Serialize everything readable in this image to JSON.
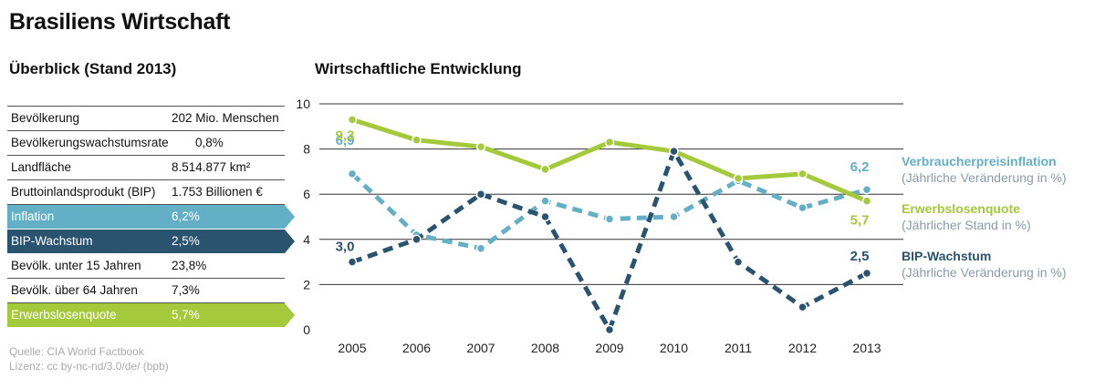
{
  "header": {
    "title": "Brasiliens Wirtschaft",
    "subtitle_left": "Überblick (Stand 2013)",
    "subtitle_right": "Wirtschaftliche Entwicklung"
  },
  "colors": {
    "inflation": "#63b0c6",
    "bip": "#2a5370",
    "erwerbslos": "#a4c93a"
  },
  "overview": [
    {
      "label": "Bevölkerung",
      "value": "202 Mio. Menschen"
    },
    {
      "label": "Bevölkerungswachstumsrate",
      "value": "0,8%"
    },
    {
      "label": "Landfläche",
      "value": "8.514.877 km²"
    },
    {
      "label": "Bruttoinlandsprodukt (BIP)",
      "value": "1.753 Billionen €"
    },
    {
      "label": "Inflation",
      "value": "6,2%"
    },
    {
      "label": "BIP-Wachstum",
      "value": "2,5%"
    },
    {
      "label": "Bevölk. unter 15 Jahren",
      "value": "23,8%"
    },
    {
      "label": "Bevölk. über 64 Jahren",
      "value": "7,3%"
    },
    {
      "label": "Erwerbslosenquote",
      "value": "5,7%"
    }
  ],
  "source": {
    "line1": "Quelle: CIA World Factbook",
    "line2": "Lizenz: cc by-nc-nd/3.0/de/ (bpb)"
  },
  "chart_data": {
    "type": "line",
    "x": [
      "2005",
      "2006",
      "2007",
      "2008",
      "2009",
      "2010",
      "2011",
      "2012",
      "2013"
    ],
    "ylim": [
      0,
      10
    ],
    "yticks": [
      "0",
      "2",
      "4",
      "6",
      "8",
      "10"
    ],
    "grid": true,
    "legend_position": "right",
    "series": [
      {
        "name": "Verbraucherpreisinflation",
        "note": "(Jährliche Veränderung in %)",
        "key": "inflation",
        "values": [
          6.9,
          4.2,
          3.6,
          5.7,
          4.9,
          5.0,
          6.6,
          5.4,
          6.2
        ],
        "dashed": true,
        "first_label": "6,9",
        "last_label": "6,2"
      },
      {
        "name": "Erwerbslosenquote",
        "note": "(Jährlicher Stand in %)",
        "key": "erwerbslos",
        "values": [
          9.3,
          8.4,
          8.1,
          7.1,
          8.3,
          7.9,
          6.7,
          6.9,
          5.7
        ],
        "dashed": false,
        "first_label": "9,3",
        "last_label": "5,7"
      },
      {
        "name": "BIP-Wachstum",
        "note": "(Jährliche Veränderung in %)",
        "key": "bip",
        "values": [
          3.0,
          4.0,
          6.0,
          5.0,
          0.0,
          7.9,
          3.0,
          1.0,
          2.5
        ],
        "dashed": true,
        "first_label": "3,0",
        "last_label": "2,5"
      }
    ]
  }
}
